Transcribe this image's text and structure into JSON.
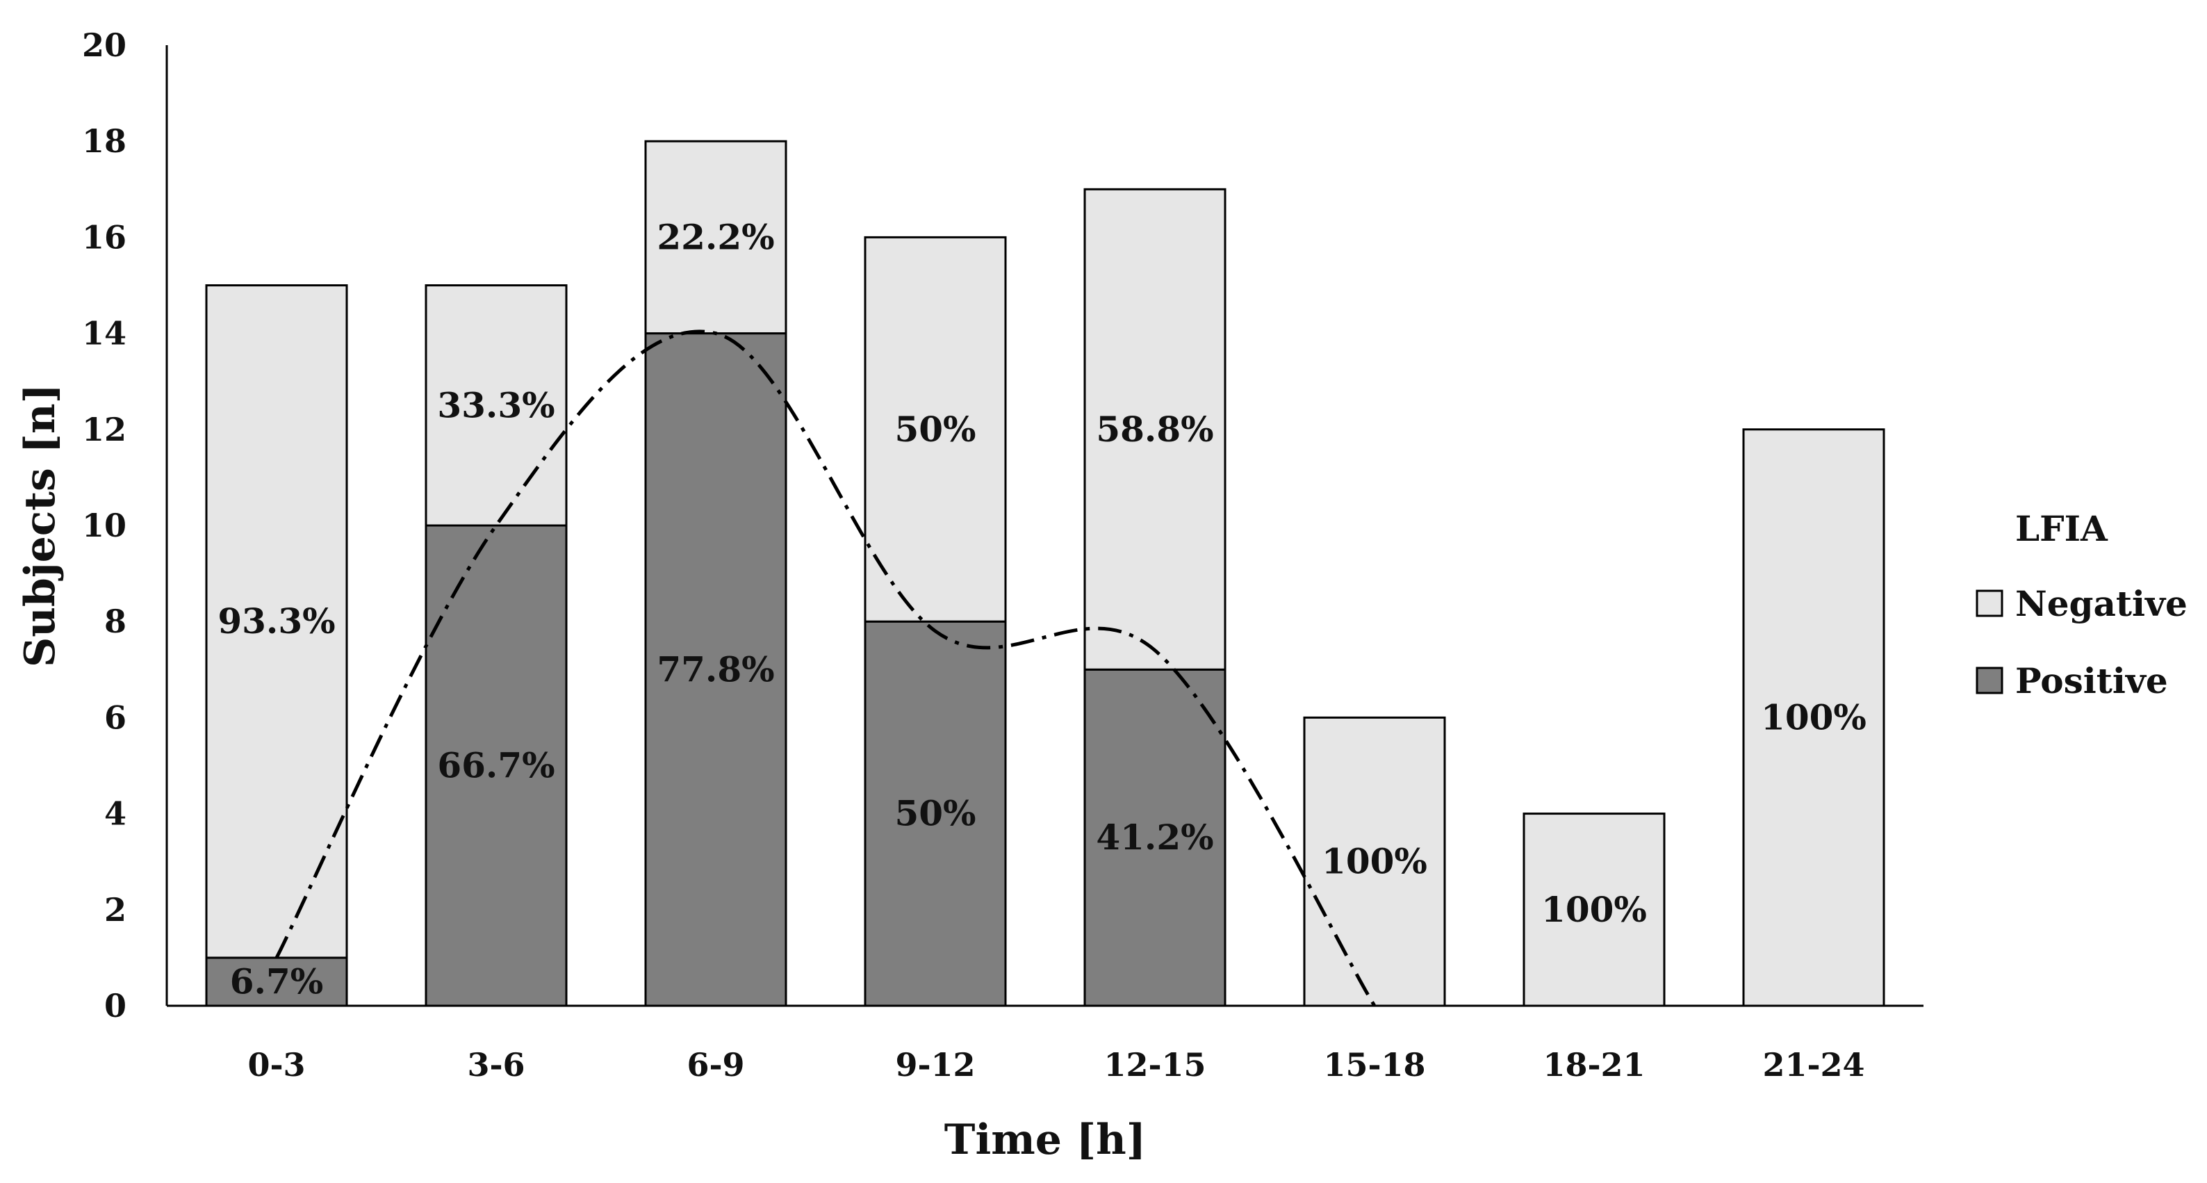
{
  "chart_data": {
    "type": "bar",
    "stacked": true,
    "title": "",
    "xlabel": "Time [h]",
    "ylabel": "Subjects [n]",
    "ylim": [
      0,
      20
    ],
    "yticks": [
      0,
      2,
      4,
      6,
      8,
      10,
      12,
      14,
      16,
      18,
      20
    ],
    "categories": [
      "0-3",
      "3-6",
      "6-9",
      "9-12",
      "12-15",
      "15-18",
      "18-21",
      "21-24"
    ],
    "series": [
      {
        "name": "Positive",
        "color": "#7f7f7f",
        "values": [
          1,
          10,
          14,
          8,
          7,
          0,
          0,
          0
        ],
        "labels": [
          "6.7%",
          "66.7%",
          "77.8%",
          "50%",
          "41.2%",
          "",
          "",
          ""
        ]
      },
      {
        "name": "Negative",
        "color": "#e6e6e6",
        "values": [
          14,
          5,
          4,
          8,
          10,
          6,
          4,
          12
        ],
        "labels": [
          "93.3%",
          "33.3%",
          "22.2%",
          "50%",
          "58.8%",
          "100%",
          "100%",
          "100%"
        ]
      }
    ],
    "trendline": {
      "style": "dash-dot",
      "color": "#000000",
      "description": "smoothed curve through positive counts",
      "points": [
        {
          "x": "0-3",
          "y": 1
        },
        {
          "x": "3-6",
          "y": 10
        },
        {
          "x": "6-9",
          "y": 14
        },
        {
          "x": "9-12",
          "y": 7.8
        },
        {
          "x": "12-15",
          "y": 7.4
        },
        {
          "x": "15-18",
          "y": 0
        }
      ]
    },
    "legend": {
      "title": "LFIA",
      "position": "right",
      "entries": [
        {
          "name": "Negative",
          "color": "#e6e6e6"
        },
        {
          "name": "Positive",
          "color": "#7f7f7f"
        }
      ]
    }
  }
}
